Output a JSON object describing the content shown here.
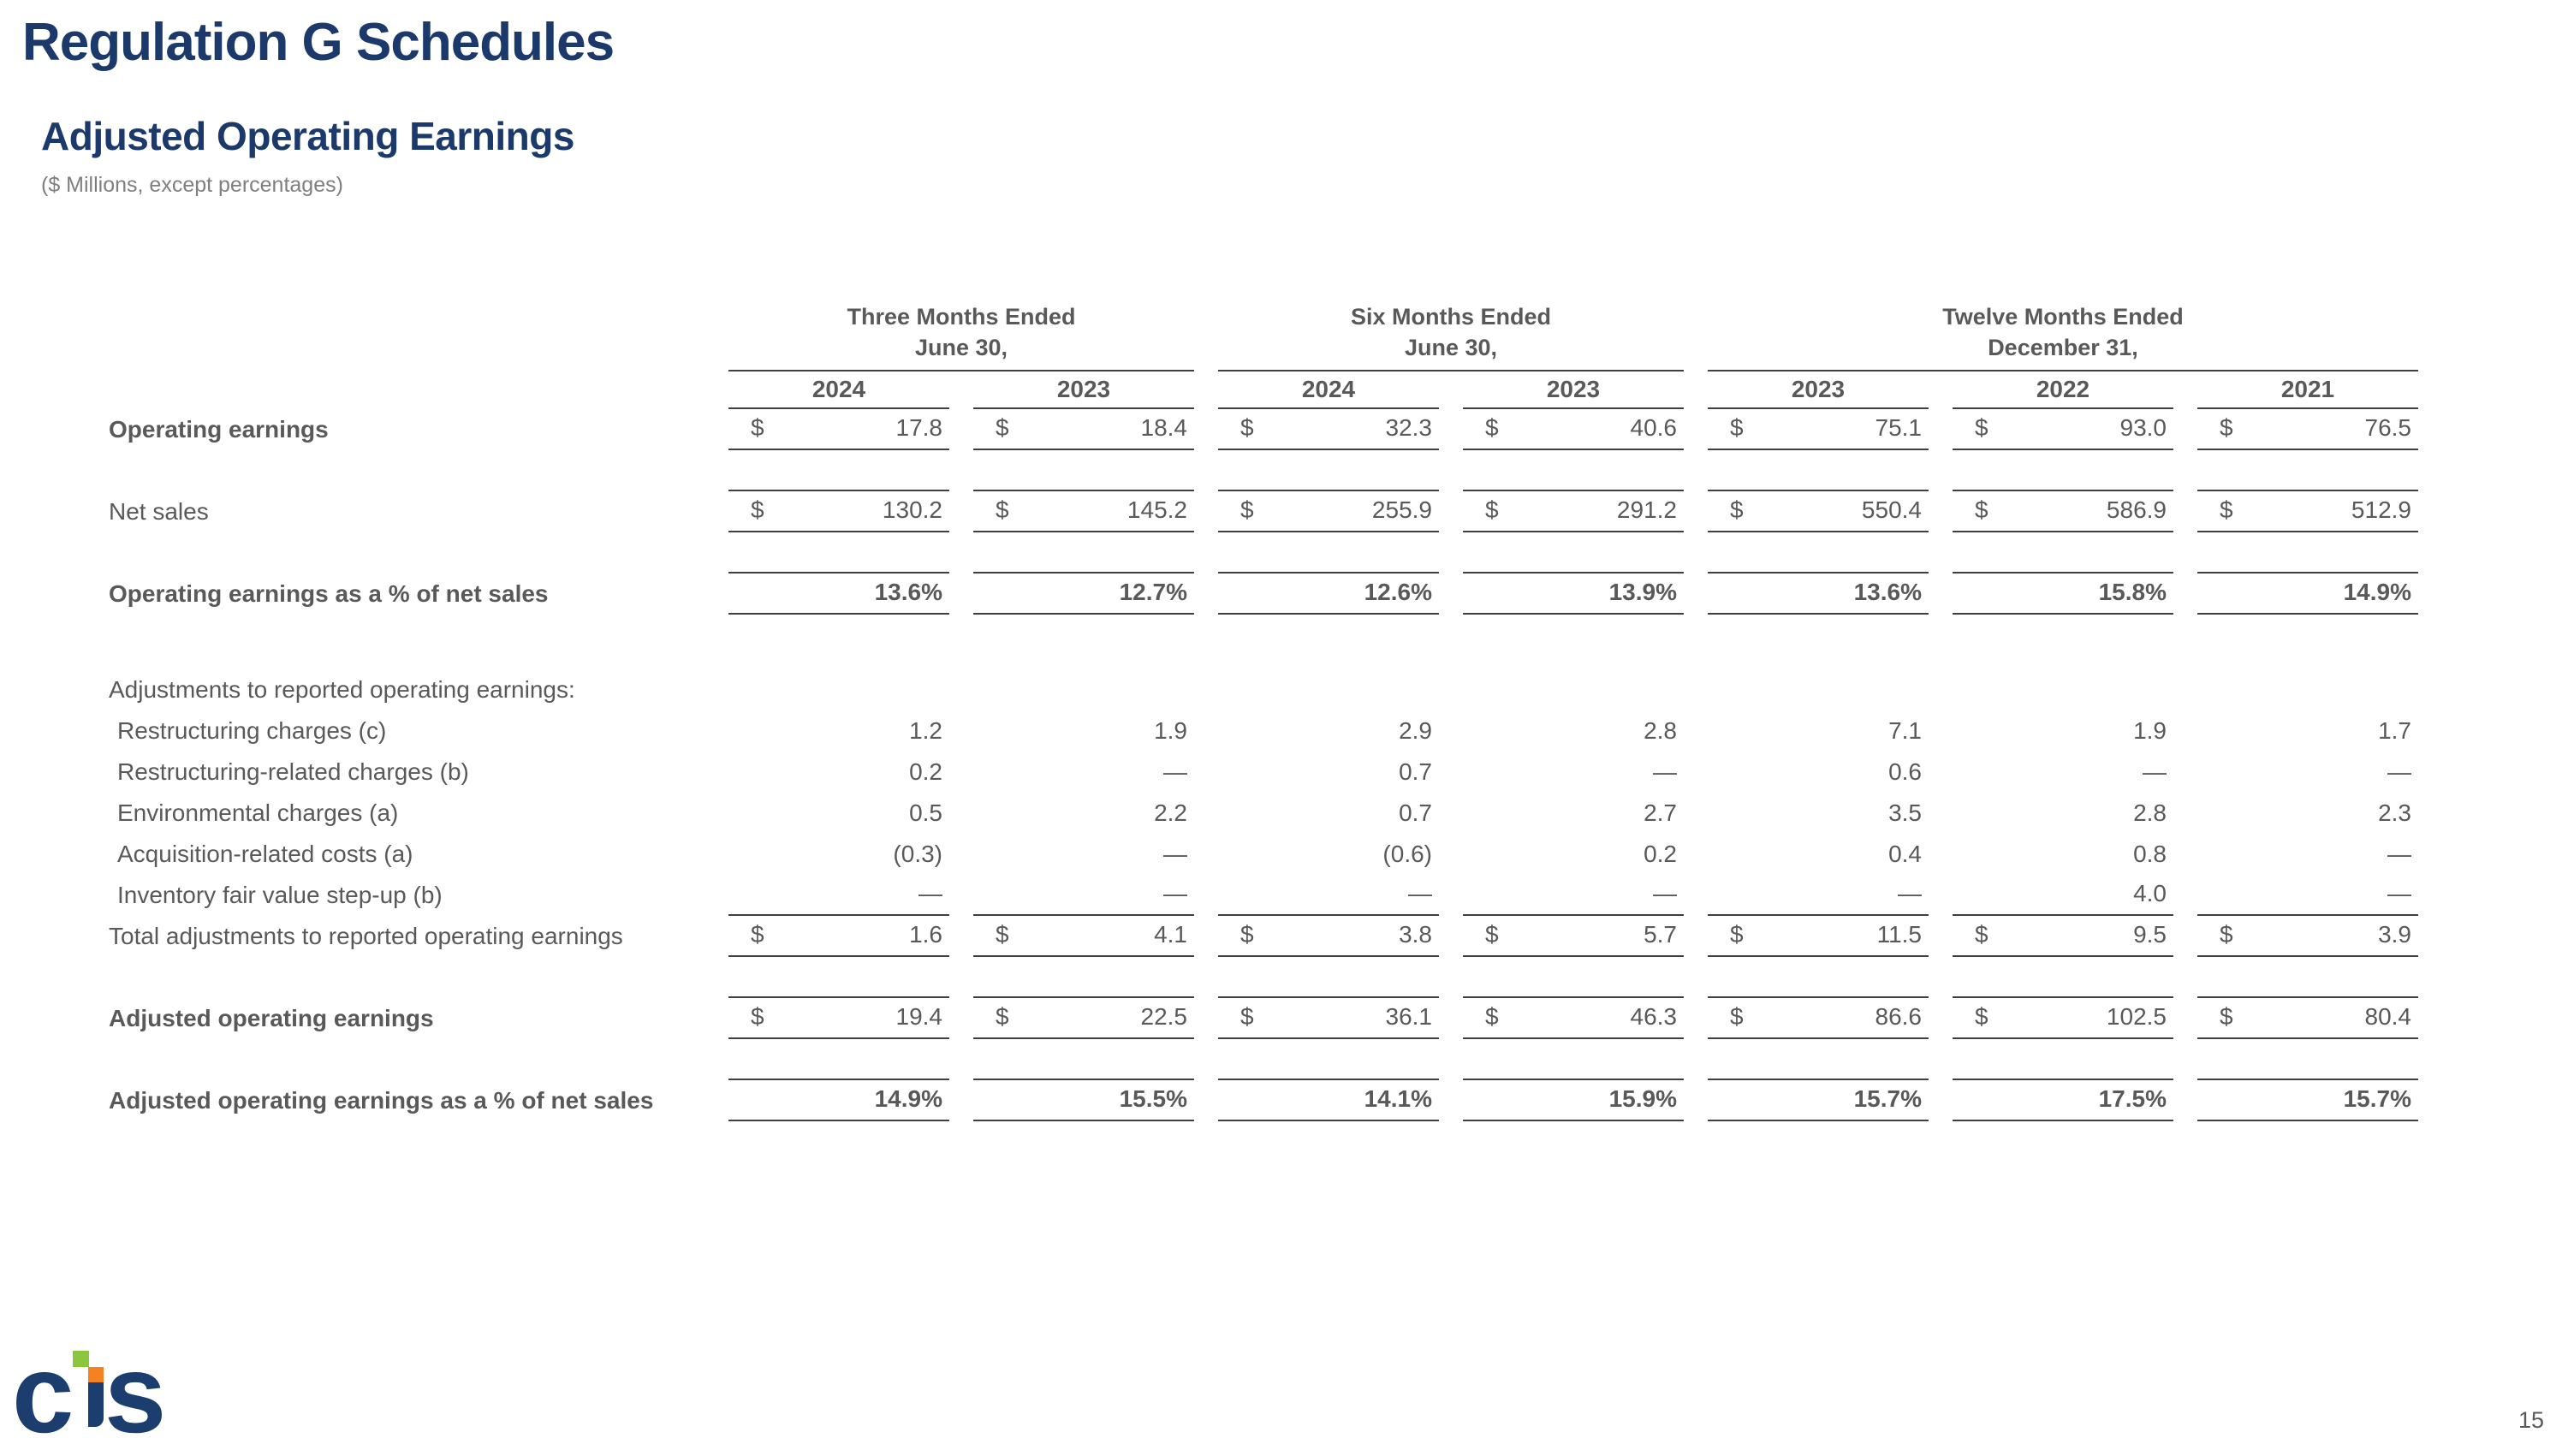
{
  "slide": {
    "title": "Regulation G Schedules",
    "subtitle": "Adjusted Operating Earnings",
    "units_note": "($ Millions, except percentages)",
    "page_number": "15"
  },
  "logo": {
    "letter_c": "c",
    "letter_s": "s",
    "name": "cts"
  },
  "colors": {
    "navy": "#1b3a6b",
    "body_text": "#595959",
    "note_gray": "#7f7f7f",
    "rule_line": "#3f3f3f",
    "logo_green": "#8cc63f",
    "logo_orange": "#f58220"
  },
  "table": {
    "column_groups": [
      {
        "title_line1": "Three Months Ended",
        "title_line2": "June 30,",
        "years": [
          "2024",
          "2023"
        ]
      },
      {
        "title_line1": "Six Months Ended",
        "title_line2": "June 30,",
        "years": [
          "2024",
          "2023"
        ]
      },
      {
        "title_line1": "Twelve Months Ended",
        "title_line2": "December 31,",
        "years": [
          "2023",
          "2022",
          "2021"
        ]
      }
    ],
    "rows": [
      {
        "label": "Operating earnings",
        "bold": true,
        "dollar": true,
        "underline": true,
        "values": [
          "17.8",
          "18.4",
          "32.3",
          "40.6",
          "75.1",
          "93.0",
          "76.5"
        ]
      },
      {
        "spacer": true,
        "underline": true
      },
      {
        "label": "Net sales",
        "dollar": true,
        "underline": true,
        "values": [
          "130.2",
          "145.2",
          "255.9",
          "291.2",
          "550.4",
          "586.9",
          "512.9"
        ]
      },
      {
        "spacer": true,
        "underline": true
      },
      {
        "label": "Operating earnings as a % of net sales",
        "bold": true,
        "bold_values": true,
        "underline": true,
        "values": [
          "13.6%",
          "12.7%",
          "12.6%",
          "13.9%",
          "13.6%",
          "15.8%",
          "14.9%"
        ]
      },
      {
        "spacer": true,
        "tall": true
      },
      {
        "label": "Adjustments to reported operating earnings:",
        "section": true
      },
      {
        "label": "Restructuring charges (c)",
        "indent": true,
        "values": [
          "1.2",
          "1.9",
          "2.9",
          "2.8",
          "7.1",
          "1.9",
          "1.7"
        ]
      },
      {
        "label": "Restructuring-related charges (b)",
        "indent": true,
        "values": [
          "0.2",
          "—",
          "0.7",
          "—",
          "0.6",
          "—",
          "—"
        ]
      },
      {
        "label": "Environmental charges (a)",
        "indent": true,
        "values": [
          "0.5",
          "2.2",
          "0.7",
          "2.7",
          "3.5",
          "2.8",
          "2.3"
        ]
      },
      {
        "label": "Acquisition-related costs (a)",
        "indent": true,
        "values": [
          "(0.3)",
          "—",
          "(0.6)",
          "0.2",
          "0.4",
          "0.8",
          "—"
        ]
      },
      {
        "label": "Inventory fair value step-up (b)",
        "indent": true,
        "underline": true,
        "values": [
          "—",
          "—",
          "—",
          "—",
          "—",
          "4.0",
          "—"
        ]
      },
      {
        "label": "Total adjustments to reported operating earnings",
        "dollar": true,
        "underline": true,
        "values": [
          "1.6",
          "4.1",
          "3.8",
          "5.7",
          "11.5",
          "9.5",
          "3.9"
        ]
      },
      {
        "spacer": true,
        "underline": true
      },
      {
        "label": "Adjusted operating earnings",
        "bold": true,
        "dollar": true,
        "underline": true,
        "values": [
          "19.4",
          "22.5",
          "36.1",
          "46.3",
          "86.6",
          "102.5",
          "80.4"
        ]
      },
      {
        "spacer": true,
        "underline": true
      },
      {
        "label": "Adjusted operating earnings as a % of net sales",
        "bold": true,
        "bold_values": true,
        "underline": true,
        "values": [
          "14.9%",
          "15.5%",
          "14.1%",
          "15.9%",
          "15.7%",
          "17.5%",
          "15.7%"
        ]
      }
    ]
  }
}
